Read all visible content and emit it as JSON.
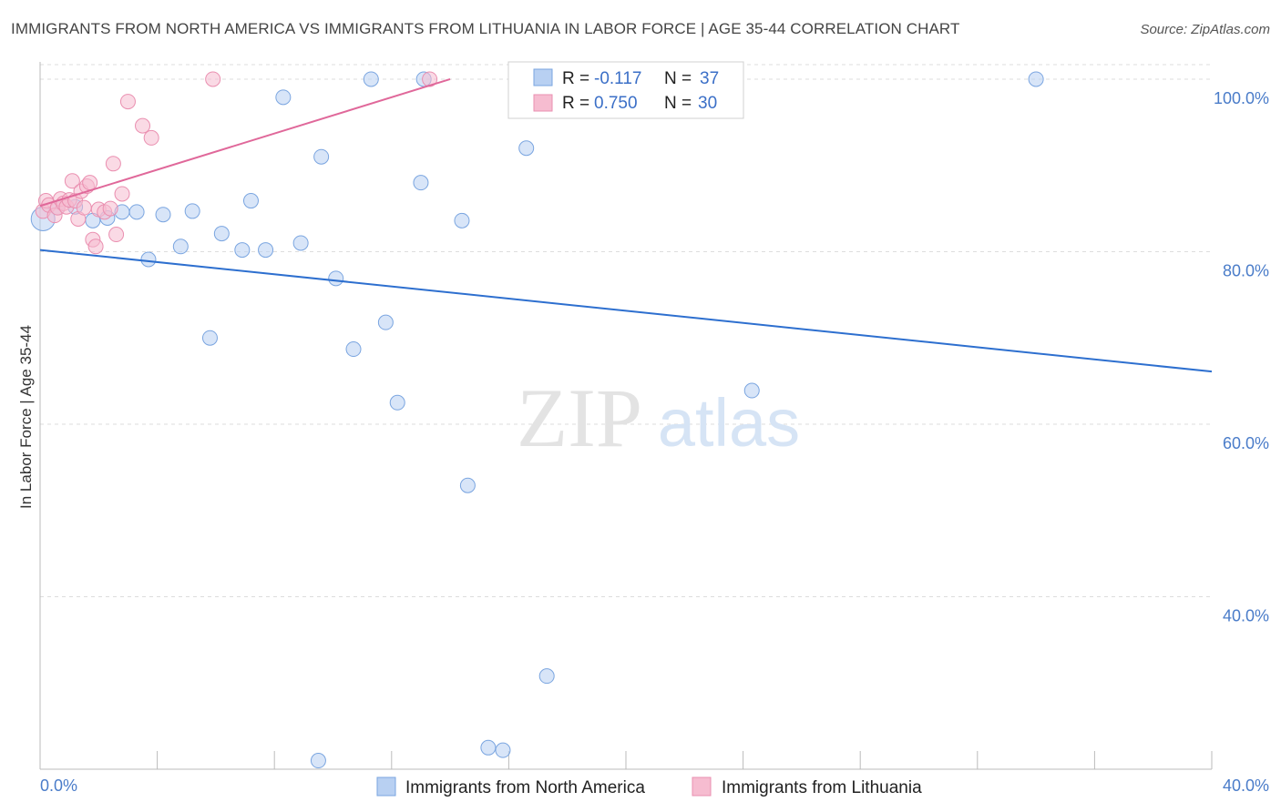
{
  "header": {
    "title": "IMMIGRANTS FROM NORTH AMERICA VS IMMIGRANTS FROM LITHUANIA IN LABOR FORCE | AGE 35-44 CORRELATION CHART",
    "source": "Source: ZipAtlas.com"
  },
  "watermark": {
    "zip": "ZIP",
    "atlas": "atlas"
  },
  "colors": {
    "blue_fill": "#b8d0f2",
    "blue_stroke": "#7aa5e0",
    "blue_line": "#2d6fcf",
    "pink_fill": "#f6bcd0",
    "pink_stroke": "#ea8fb0",
    "pink_line": "#e0689a",
    "tick_text": "#4a7cc9",
    "grid": "#dddddd"
  },
  "legend": {
    "rows": [
      {
        "r_label": "R = ",
        "r_value": "-0.117",
        "n_label": "N = ",
        "n_value": "37"
      },
      {
        "r_label": "R = ",
        "r_value": "0.750",
        "n_label": "N = ",
        "n_value": "30"
      }
    ]
  },
  "chart_data": {
    "type": "scatter",
    "title": "IMMIGRANTS FROM NORTH AMERICA VS IMMIGRANTS FROM LITHUANIA IN LABOR FORCE | AGE 35-44 CORRELATION CHART",
    "xlabel": "",
    "ylabel": "In Labor Force | Age 35-44",
    "xlim": [
      0,
      40
    ],
    "ylim": [
      20,
      102
    ],
    "x_tick_labels": [
      "0.0%",
      "40.0%"
    ],
    "y_ticks": [
      40,
      60,
      80,
      100
    ],
    "y_tick_labels": [
      "40.0%",
      "60.0%",
      "80.0%",
      "100.0%"
    ],
    "grid": true,
    "legend_position": "top-center",
    "series": [
      {
        "name": "Immigrants from North America",
        "color": "#b8d0f2",
        "trend": {
          "x": [
            0,
            40
          ],
          "y": [
            80.2,
            66.1
          ]
        },
        "points": [
          {
            "x": 0.1,
            "y": 83.8,
            "size": 26
          },
          {
            "x": 0.6,
            "y": 85.1
          },
          {
            "x": 1.2,
            "y": 85.2
          },
          {
            "x": 1.8,
            "y": 83.6
          },
          {
            "x": 2.3,
            "y": 83.9
          },
          {
            "x": 2.8,
            "y": 84.6
          },
          {
            "x": 3.3,
            "y": 84.6
          },
          {
            "x": 3.7,
            "y": 79.1
          },
          {
            "x": 4.2,
            "y": 84.3
          },
          {
            "x": 4.8,
            "y": 80.6
          },
          {
            "x": 5.2,
            "y": 84.7
          },
          {
            "x": 5.8,
            "y": 70.0
          },
          {
            "x": 6.2,
            "y": 82.1
          },
          {
            "x": 6.9,
            "y": 80.2
          },
          {
            "x": 7.2,
            "y": 85.9
          },
          {
            "x": 7.7,
            "y": 80.2
          },
          {
            "x": 8.3,
            "y": 97.9
          },
          {
            "x": 8.9,
            "y": 81.0
          },
          {
            "x": 9.5,
            "y": 21.0
          },
          {
            "x": 9.6,
            "y": 91.0
          },
          {
            "x": 10.1,
            "y": 76.9
          },
          {
            "x": 10.7,
            "y": 68.7
          },
          {
            "x": 11.3,
            "y": 100.0
          },
          {
            "x": 11.8,
            "y": 71.8
          },
          {
            "x": 12.2,
            "y": 62.5
          },
          {
            "x": 13.0,
            "y": 88.0
          },
          {
            "x": 13.1,
            "y": 100.0
          },
          {
            "x": 14.4,
            "y": 83.6
          },
          {
            "x": 14.6,
            "y": 52.9
          },
          {
            "x": 15.3,
            "y": 22.5
          },
          {
            "x": 15.8,
            "y": 22.2
          },
          {
            "x": 16.6,
            "y": 92.0
          },
          {
            "x": 17.3,
            "y": 30.8
          },
          {
            "x": 17.6,
            "y": 96.8
          },
          {
            "x": 20.8,
            "y": 100.0
          },
          {
            "x": 24.3,
            "y": 63.9
          },
          {
            "x": 34.0,
            "y": 100.0
          }
        ]
      },
      {
        "name": "Immigrants from Lithuania",
        "color": "#f6bcd0",
        "trend": {
          "x": [
            0,
            14.0
          ],
          "y": [
            85.3,
            100.0
          ]
        },
        "points": [
          {
            "x": 0.1,
            "y": 84.7
          },
          {
            "x": 0.2,
            "y": 85.9
          },
          {
            "x": 0.3,
            "y": 85.4
          },
          {
            "x": 0.5,
            "y": 84.2
          },
          {
            "x": 0.6,
            "y": 85.1
          },
          {
            "x": 0.7,
            "y": 86.1
          },
          {
            "x": 0.8,
            "y": 85.6
          },
          {
            "x": 0.9,
            "y": 85.2
          },
          {
            "x": 1.0,
            "y": 86.0
          },
          {
            "x": 1.1,
            "y": 88.2
          },
          {
            "x": 1.2,
            "y": 85.9
          },
          {
            "x": 1.3,
            "y": 83.8
          },
          {
            "x": 1.4,
            "y": 87.0
          },
          {
            "x": 1.5,
            "y": 85.1
          },
          {
            "x": 1.6,
            "y": 87.6
          },
          {
            "x": 1.7,
            "y": 88.0
          },
          {
            "x": 1.8,
            "y": 81.4
          },
          {
            "x": 1.9,
            "y": 80.6
          },
          {
            "x": 2.0,
            "y": 84.9
          },
          {
            "x": 2.2,
            "y": 84.6
          },
          {
            "x": 2.4,
            "y": 85.0
          },
          {
            "x": 2.5,
            "y": 90.2
          },
          {
            "x": 2.6,
            "y": 82.0
          },
          {
            "x": 2.8,
            "y": 86.7
          },
          {
            "x": 3.0,
            "y": 97.4
          },
          {
            "x": 3.5,
            "y": 94.6
          },
          {
            "x": 3.8,
            "y": 93.2
          },
          {
            "x": 5.9,
            "y": 100.0
          },
          {
            "x": 13.3,
            "y": 100.0
          },
          {
            "x": 18.6,
            "y": 100.0
          }
        ]
      }
    ]
  }
}
